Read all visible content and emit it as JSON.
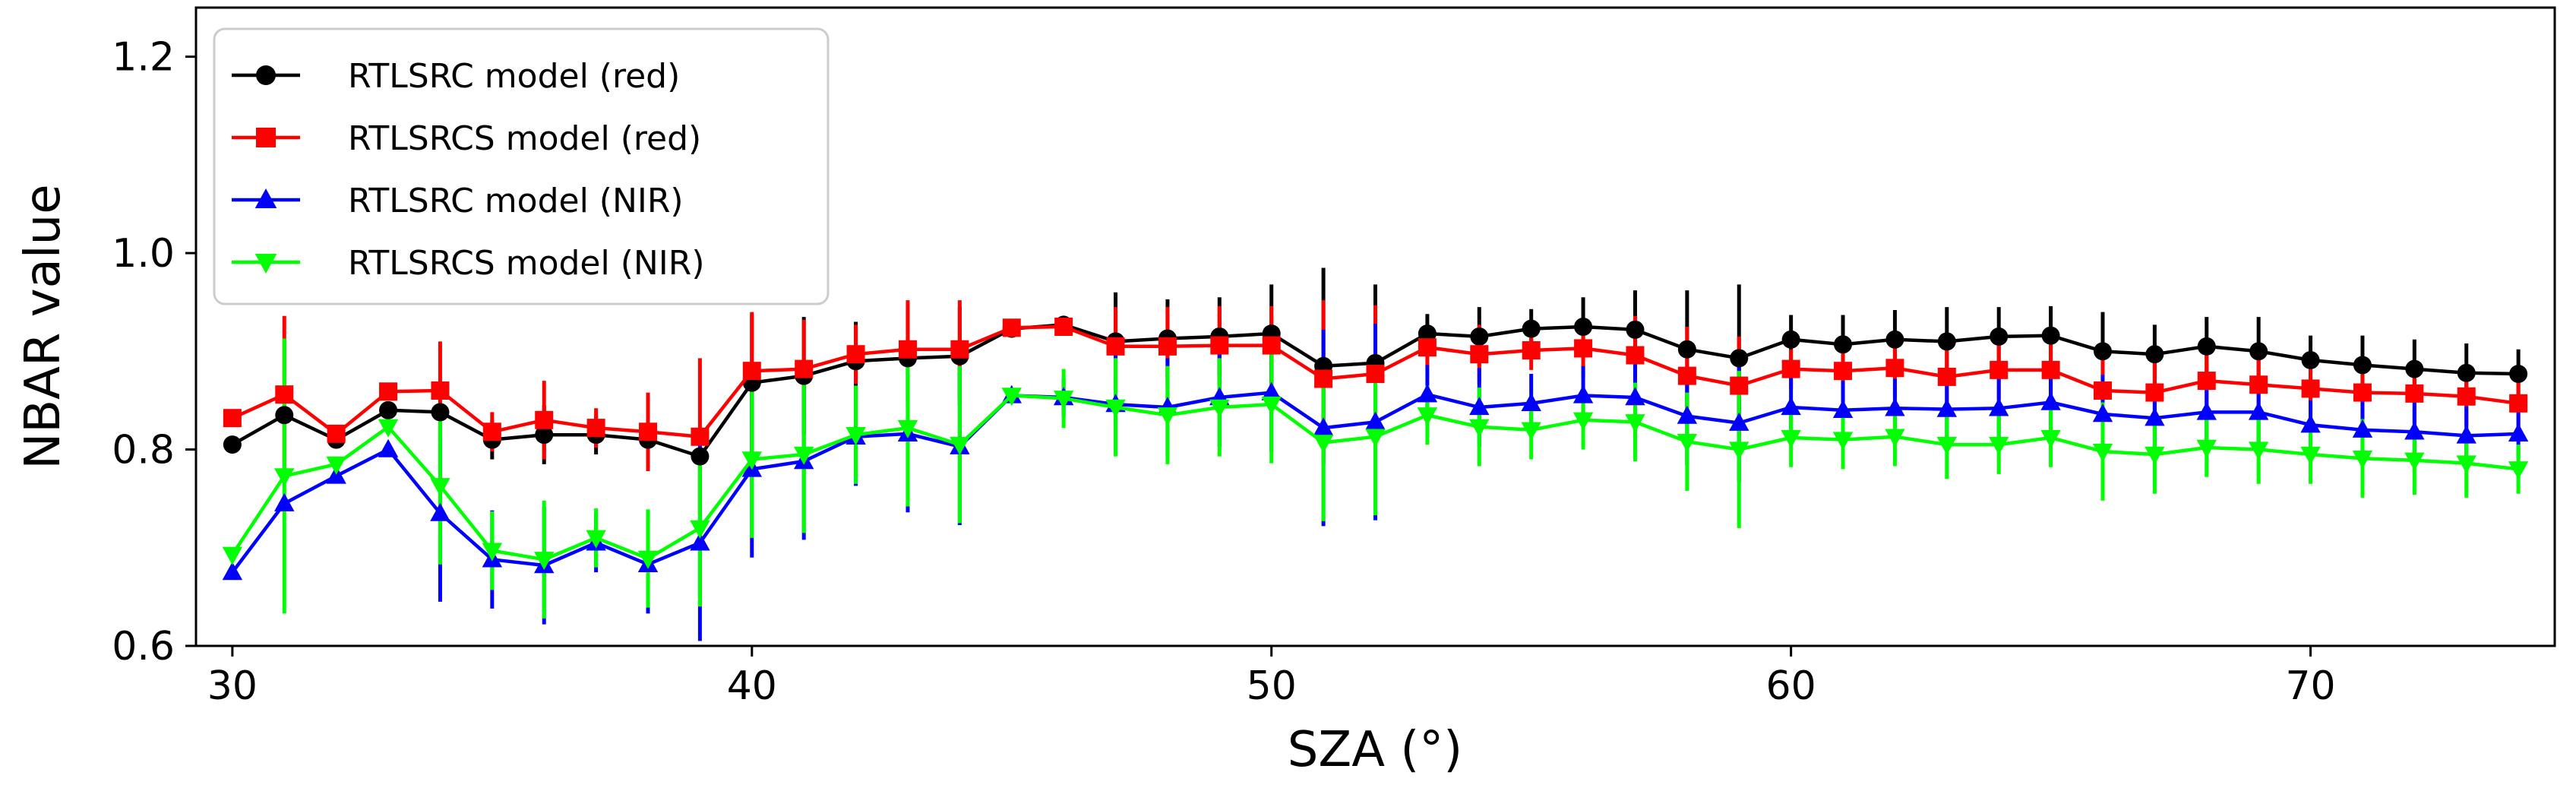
{
  "chart_data": {
    "type": "line",
    "title": "",
    "xlabel": "SZA (°)",
    "ylabel": "NBAR value",
    "xlim": [
      29.3,
      74.7
    ],
    "ylim": [
      0.6,
      1.25
    ],
    "xticks": [
      30,
      40,
      50,
      60,
      70
    ],
    "xtick_labels": [
      "30",
      "40",
      "50",
      "60",
      "70"
    ],
    "yticks": [
      0.6,
      0.8,
      1.0,
      1.2
    ],
    "ytick_labels": [
      "0.6",
      "0.8",
      "1.0",
      "1.2"
    ],
    "grid": false,
    "legend_position": "upper-left",
    "x": [
      30,
      31,
      32,
      33,
      34,
      35,
      36,
      37,
      38,
      39,
      40,
      41,
      42,
      43,
      44,
      45,
      46,
      47,
      48,
      49,
      50,
      51,
      52,
      53,
      54,
      55,
      56,
      57,
      58,
      59,
      60,
      61,
      62,
      63,
      64,
      65,
      66,
      67,
      68,
      69,
      70,
      71,
      72,
      73,
      74
    ],
    "series": [
      {
        "name": "RTLSRC model (red)",
        "color": "#000000",
        "marker": "circle",
        "values": [
          0.805,
          0.835,
          0.81,
          0.84,
          0.838,
          0.81,
          0.815,
          0.815,
          0.81,
          0.793,
          0.868,
          0.875,
          0.89,
          0.893,
          0.895,
          0.923,
          0.927,
          0.91,
          0.913,
          0.915,
          0.918,
          0.885,
          0.888,
          0.918,
          0.915,
          0.923,
          0.925,
          0.922,
          0.902,
          0.893,
          0.912,
          0.907,
          0.912,
          0.91,
          0.915,
          0.916,
          0.9,
          0.897,
          0.905,
          0.9,
          0.891,
          0.886,
          0.882,
          0.878,
          0.877
        ],
        "errors": [
          0,
          0,
          0,
          0,
          0,
          0.02,
          0.03,
          0.02,
          0.02,
          0,
          0.07,
          0.06,
          0.04,
          0.05,
          0.05,
          0,
          0,
          0.05,
          0.04,
          0.04,
          0.05,
          0.1,
          0.08,
          0.02,
          0.03,
          0.02,
          0.03,
          0.04,
          0.06,
          0.075,
          0.025,
          0.03,
          0.03,
          0.035,
          0.03,
          0.03,
          0.04,
          0.03,
          0.03,
          0.035,
          0.025,
          0.03,
          0.03,
          0.03,
          0.025
        ]
      },
      {
        "name": "RTLSRCS model (red)",
        "color": "#ff0000",
        "marker": "square",
        "values": [
          0.832,
          0.856,
          0.816,
          0.859,
          0.86,
          0.818,
          0.83,
          0.822,
          0.818,
          0.813,
          0.88,
          0.882,
          0.897,
          0.902,
          0.902,
          0.924,
          0.925,
          0.905,
          0.905,
          0.906,
          0.906,
          0.872,
          0.877,
          0.904,
          0.897,
          0.901,
          0.903,
          0.896,
          0.875,
          0.865,
          0.882,
          0.88,
          0.883,
          0.874,
          0.881,
          0.881,
          0.86,
          0.858,
          0.87,
          0.866,
          0.862,
          0.858,
          0.857,
          0.854,
          0.847
        ],
        "errors": [
          0,
          0.08,
          0,
          0,
          0.05,
          0.02,
          0.04,
          0.02,
          0.04,
          0.08,
          0.06,
          0.05,
          0.03,
          0.05,
          0.05,
          0,
          0,
          0.04,
          0.04,
          0.04,
          0.04,
          0.08,
          0.07,
          0.02,
          0.03,
          0.02,
          0.03,
          0.04,
          0.05,
          0.05,
          0.02,
          0.03,
          0.03,
          0.035,
          0.03,
          0.03,
          0.04,
          0.03,
          0.03,
          0.03,
          0.025,
          0.03,
          0.03,
          0.03,
          0.025
        ]
      },
      {
        "name": "RTLSRC model (NIR)",
        "color": "#0000ff",
        "marker": "triangle-up",
        "values": [
          0.675,
          0.745,
          0.773,
          0.8,
          0.735,
          0.688,
          0.682,
          0.705,
          0.683,
          0.705,
          0.78,
          0.788,
          0.813,
          0.816,
          0.803,
          0.855,
          0.853,
          0.846,
          0.843,
          0.853,
          0.858,
          0.822,
          0.828,
          0.856,
          0.843,
          0.847,
          0.855,
          0.853,
          0.834,
          0.827,
          0.843,
          0.84,
          0.842,
          0.841,
          0.842,
          0.848,
          0.836,
          0.832,
          0.838,
          0.838,
          0.825,
          0.82,
          0.818,
          0.814,
          0.816
        ],
        "errors": [
          0,
          0,
          0,
          0,
          0.09,
          0.05,
          0.06,
          0.03,
          0.05,
          0.1,
          0.09,
          0.08,
          0.05,
          0.08,
          0.08,
          0,
          0.02,
          0.05,
          0.05,
          0.05,
          0.06,
          0.1,
          0.1,
          0.03,
          0.04,
          0.03,
          0.03,
          0.04,
          0.05,
          0.06,
          0.03,
          0.03,
          0.03,
          0.035,
          0.03,
          0.03,
          0.04,
          0.03,
          0.03,
          0.035,
          0.025,
          0.03,
          0.03,
          0.03,
          0.025
        ]
      },
      {
        "name": "RTLSRCS model (NIR)",
        "color": "#00ff00",
        "marker": "triangle-down",
        "values": [
          0.693,
          0.773,
          0.785,
          0.823,
          0.763,
          0.697,
          0.688,
          0.71,
          0.689,
          0.72,
          0.79,
          0.795,
          0.815,
          0.822,
          0.805,
          0.855,
          0.852,
          0.843,
          0.835,
          0.843,
          0.846,
          0.807,
          0.813,
          0.835,
          0.823,
          0.82,
          0.83,
          0.828,
          0.808,
          0.8,
          0.812,
          0.81,
          0.813,
          0.805,
          0.805,
          0.812,
          0.798,
          0.795,
          0.802,
          0.8,
          0.795,
          0.791,
          0.789,
          0.786,
          0.78
        ],
        "errors": [
          0,
          0.14,
          0,
          0,
          0.08,
          0.04,
          0.06,
          0.03,
          0.05,
          0.08,
          0.08,
          0.08,
          0.05,
          0.08,
          0.08,
          0,
          0.03,
          0.05,
          0.05,
          0.05,
          0.06,
          0.08,
          0.08,
          0.03,
          0.04,
          0.03,
          0.03,
          0.04,
          0.05,
          0.08,
          0.03,
          0.03,
          0.03,
          0.035,
          0.03,
          0.03,
          0.05,
          0.04,
          0.03,
          0.035,
          0.03,
          0.04,
          0.035,
          0.035,
          0.025
        ]
      }
    ]
  }
}
